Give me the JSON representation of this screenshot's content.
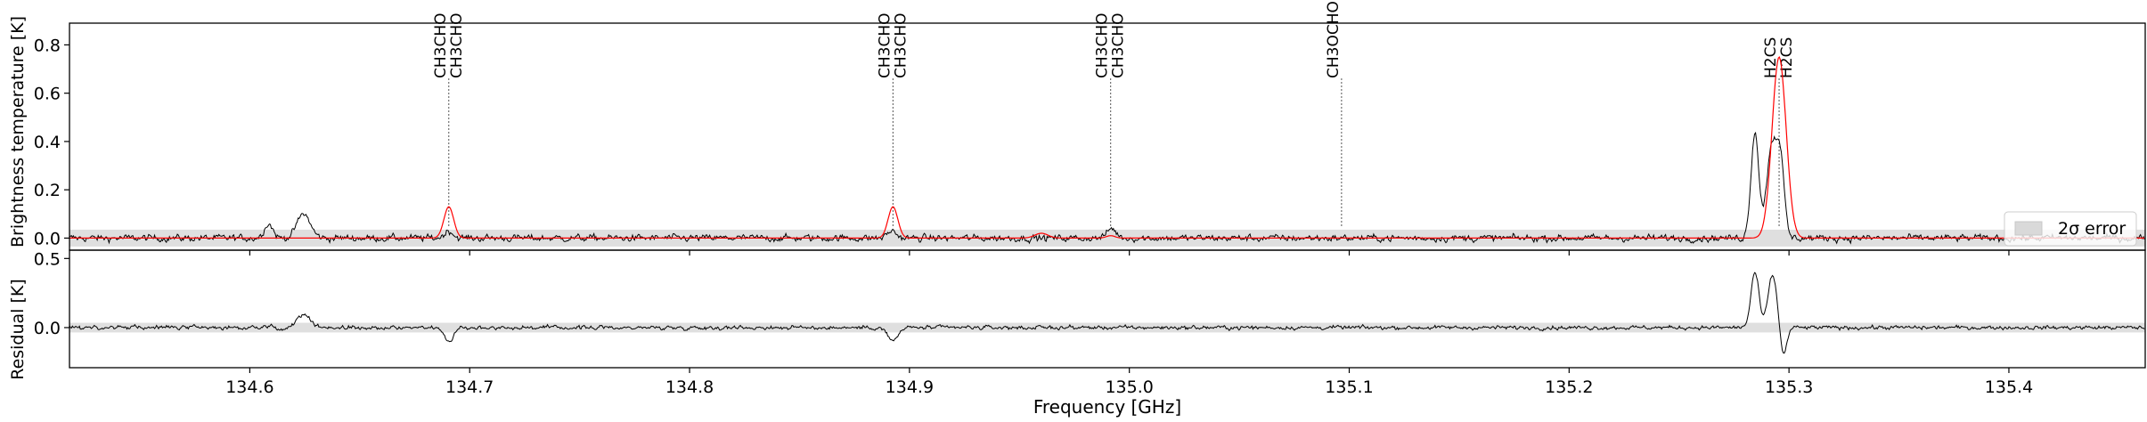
{
  "chart_data": {
    "type": "line",
    "xlabel": "Frequency [GHz]",
    "xlim": [
      134.518,
      135.462
    ],
    "xticks": [
      "134.6",
      "134.7",
      "134.8",
      "134.9",
      "135.0",
      "135.1",
      "135.2",
      "135.3",
      "135.4"
    ],
    "panels": {
      "top": {
        "ylabel": "Brightness temperature [K]",
        "ylim": [
          -0.05,
          0.89
        ],
        "yticks": [
          "0.0",
          "0.2",
          "0.4",
          "0.6",
          "0.8"
        ],
        "error_band": [
          -0.035,
          0.035
        ]
      },
      "bottom": {
        "ylabel": "Residual [K]",
        "ylim": [
          -0.29,
          0.56
        ],
        "yticks": [
          "0.0",
          "0.5"
        ],
        "error_band": [
          -0.035,
          0.035
        ]
      }
    },
    "legend": {
      "label": "2σ error",
      "placement": "lower-right"
    },
    "line_markers": [
      {
        "freq": 134.6905,
        "labels": [
          "CH3CHO",
          "CH3CHO"
        ]
      },
      {
        "freq": 134.8925,
        "labels": [
          "CH3CHO",
          "CH3CHO"
        ]
      },
      {
        "freq": 134.9915,
        "labels": [
          "CH3CHO",
          "CH3CHO"
        ]
      },
      {
        "freq": 135.0965,
        "labels": [
          "CH3OCHO"
        ]
      },
      {
        "freq": 135.2955,
        "labels": [
          "H2CS",
          "H2CS"
        ]
      }
    ],
    "series": [
      {
        "name": "observed spectrum",
        "color": "#000000",
        "noise_sigma": 0.018,
        "features": [
          {
            "x": 134.6245,
            "amp": 0.1,
            "width": 0.003
          },
          {
            "x": 134.6085,
            "amp": 0.06,
            "width": 0.002
          },
          {
            "x": 134.6905,
            "amp": 0.03,
            "width": 0.002
          },
          {
            "x": 134.892,
            "amp": 0.03,
            "width": 0.002
          },
          {
            "x": 134.992,
            "amp": 0.04,
            "width": 0.002
          },
          {
            "x": 135.2845,
            "amp": 0.44,
            "width": 0.0018
          },
          {
            "x": 135.292,
            "amp": 0.37,
            "width": 0.0022
          },
          {
            "x": 135.296,
            "amp": 0.32,
            "width": 0.0018
          }
        ]
      },
      {
        "name": "model",
        "color": "#ff0000",
        "features": [
          {
            "x": 134.6905,
            "amp": 0.13,
            "width": 0.0022
          },
          {
            "x": 134.8925,
            "amp": 0.13,
            "width": 0.0022
          },
          {
            "x": 134.9915,
            "amp": 0.01,
            "width": 0.002
          },
          {
            "x": 134.96,
            "amp": 0.02,
            "width": 0.003
          },
          {
            "x": 135.2955,
            "amp": 0.75,
            "width": 0.0032
          }
        ]
      },
      {
        "name": "residual",
        "color": "#000000",
        "noise_sigma": 0.018,
        "features": [
          {
            "x": 134.6245,
            "amp": 0.1,
            "width": 0.003
          },
          {
            "x": 134.6905,
            "amp": -0.1,
            "width": 0.002
          },
          {
            "x": 134.8925,
            "amp": -0.1,
            "width": 0.0022
          },
          {
            "x": 135.2845,
            "amp": 0.4,
            "width": 0.0018
          },
          {
            "x": 135.2925,
            "amp": 0.38,
            "width": 0.002
          },
          {
            "x": 135.2975,
            "amp": -0.2,
            "width": 0.0015
          }
        ]
      }
    ]
  }
}
